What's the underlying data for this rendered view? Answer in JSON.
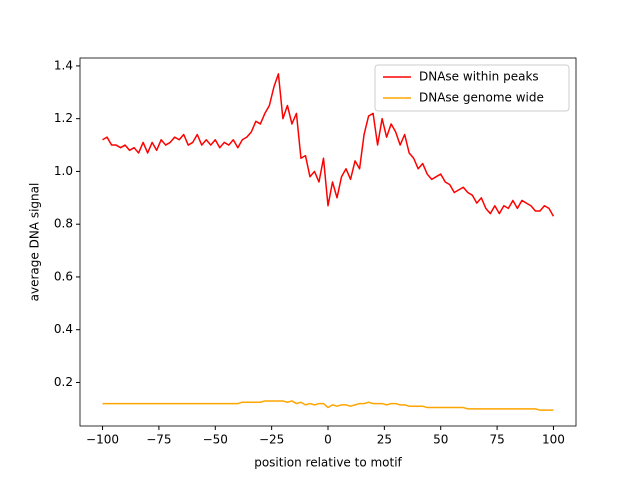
{
  "chart_data": {
    "type": "line",
    "xlabel": "position relative to motif",
    "ylabel": "average DNA signal",
    "x": [
      -100,
      -98,
      -96,
      -94,
      -92,
      -90,
      -88,
      -86,
      -84,
      -82,
      -80,
      -78,
      -76,
      -74,
      -72,
      -70,
      -68,
      -66,
      -64,
      -62,
      -60,
      -58,
      -56,
      -54,
      -52,
      -50,
      -48,
      -46,
      -44,
      -42,
      -40,
      -38,
      -36,
      -34,
      -32,
      -30,
      -28,
      -26,
      -24,
      -22,
      -20,
      -18,
      -16,
      -14,
      -12,
      -10,
      -8,
      -6,
      -4,
      -2,
      0,
      2,
      4,
      6,
      8,
      10,
      12,
      14,
      16,
      18,
      20,
      22,
      24,
      26,
      28,
      30,
      32,
      34,
      36,
      38,
      40,
      42,
      44,
      46,
      48,
      50,
      52,
      54,
      56,
      58,
      60,
      62,
      64,
      66,
      68,
      70,
      72,
      74,
      76,
      78,
      80,
      82,
      84,
      86,
      88,
      90,
      92,
      94,
      96,
      98,
      100
    ],
    "series": [
      {
        "name": "DNAse within peaks",
        "color": "#ff0000",
        "values": [
          1.12,
          1.13,
          1.1,
          1.1,
          1.09,
          1.1,
          1.08,
          1.09,
          1.07,
          1.11,
          1.07,
          1.11,
          1.08,
          1.12,
          1.1,
          1.11,
          1.13,
          1.12,
          1.14,
          1.1,
          1.11,
          1.14,
          1.1,
          1.12,
          1.1,
          1.12,
          1.09,
          1.11,
          1.1,
          1.12,
          1.09,
          1.12,
          1.13,
          1.15,
          1.19,
          1.18,
          1.22,
          1.25,
          1.32,
          1.37,
          1.2,
          1.25,
          1.18,
          1.22,
          1.05,
          1.06,
          0.98,
          1.0,
          0.96,
          1.05,
          0.87,
          0.96,
          0.9,
          0.98,
          1.01,
          0.97,
          1.04,
          1.01,
          1.14,
          1.21,
          1.22,
          1.1,
          1.2,
          1.13,
          1.18,
          1.15,
          1.1,
          1.14,
          1.07,
          1.05,
          1.01,
          1.03,
          0.99,
          0.97,
          0.98,
          0.99,
          0.96,
          0.95,
          0.92,
          0.93,
          0.94,
          0.92,
          0.91,
          0.88,
          0.9,
          0.86,
          0.84,
          0.87,
          0.84,
          0.87,
          0.86,
          0.89,
          0.86,
          0.89,
          0.88,
          0.87,
          0.85,
          0.85,
          0.87,
          0.86,
          0.83
        ]
      },
      {
        "name": "DNAse genome wide",
        "color": "#ffa500",
        "values": [
          0.12,
          0.12,
          0.12,
          0.12,
          0.12,
          0.12,
          0.12,
          0.12,
          0.12,
          0.12,
          0.12,
          0.12,
          0.12,
          0.12,
          0.12,
          0.12,
          0.12,
          0.12,
          0.12,
          0.12,
          0.12,
          0.12,
          0.12,
          0.12,
          0.12,
          0.12,
          0.12,
          0.12,
          0.12,
          0.12,
          0.12,
          0.125,
          0.125,
          0.125,
          0.125,
          0.125,
          0.13,
          0.13,
          0.13,
          0.13,
          0.13,
          0.125,
          0.13,
          0.12,
          0.125,
          0.115,
          0.12,
          0.115,
          0.12,
          0.12,
          0.105,
          0.115,
          0.11,
          0.115,
          0.115,
          0.11,
          0.115,
          0.12,
          0.12,
          0.125,
          0.12,
          0.12,
          0.12,
          0.115,
          0.12,
          0.12,
          0.115,
          0.115,
          0.11,
          0.11,
          0.11,
          0.11,
          0.105,
          0.105,
          0.105,
          0.105,
          0.105,
          0.105,
          0.105,
          0.105,
          0.105,
          0.1,
          0.1,
          0.1,
          0.1,
          0.1,
          0.1,
          0.1,
          0.1,
          0.1,
          0.1,
          0.1,
          0.1,
          0.1,
          0.1,
          0.1,
          0.1,
          0.095,
          0.095,
          0.095,
          0.095
        ]
      }
    ],
    "xlim": [
      -110,
      110
    ],
    "ylim": [
      0.035,
      1.43
    ],
    "xticks": [
      {
        "value": -100,
        "label": "−100"
      },
      {
        "value": -75,
        "label": "−75"
      },
      {
        "value": -50,
        "label": "−50"
      },
      {
        "value": -25,
        "label": "−25"
      },
      0,
      25,
      50,
      75,
      100
    ],
    "yticks": [
      0.2,
      0.4,
      0.6,
      0.8,
      {
        "value": 1,
        "label": "1.0"
      },
      1.2,
      1.4
    ],
    "legend": "upper right"
  }
}
